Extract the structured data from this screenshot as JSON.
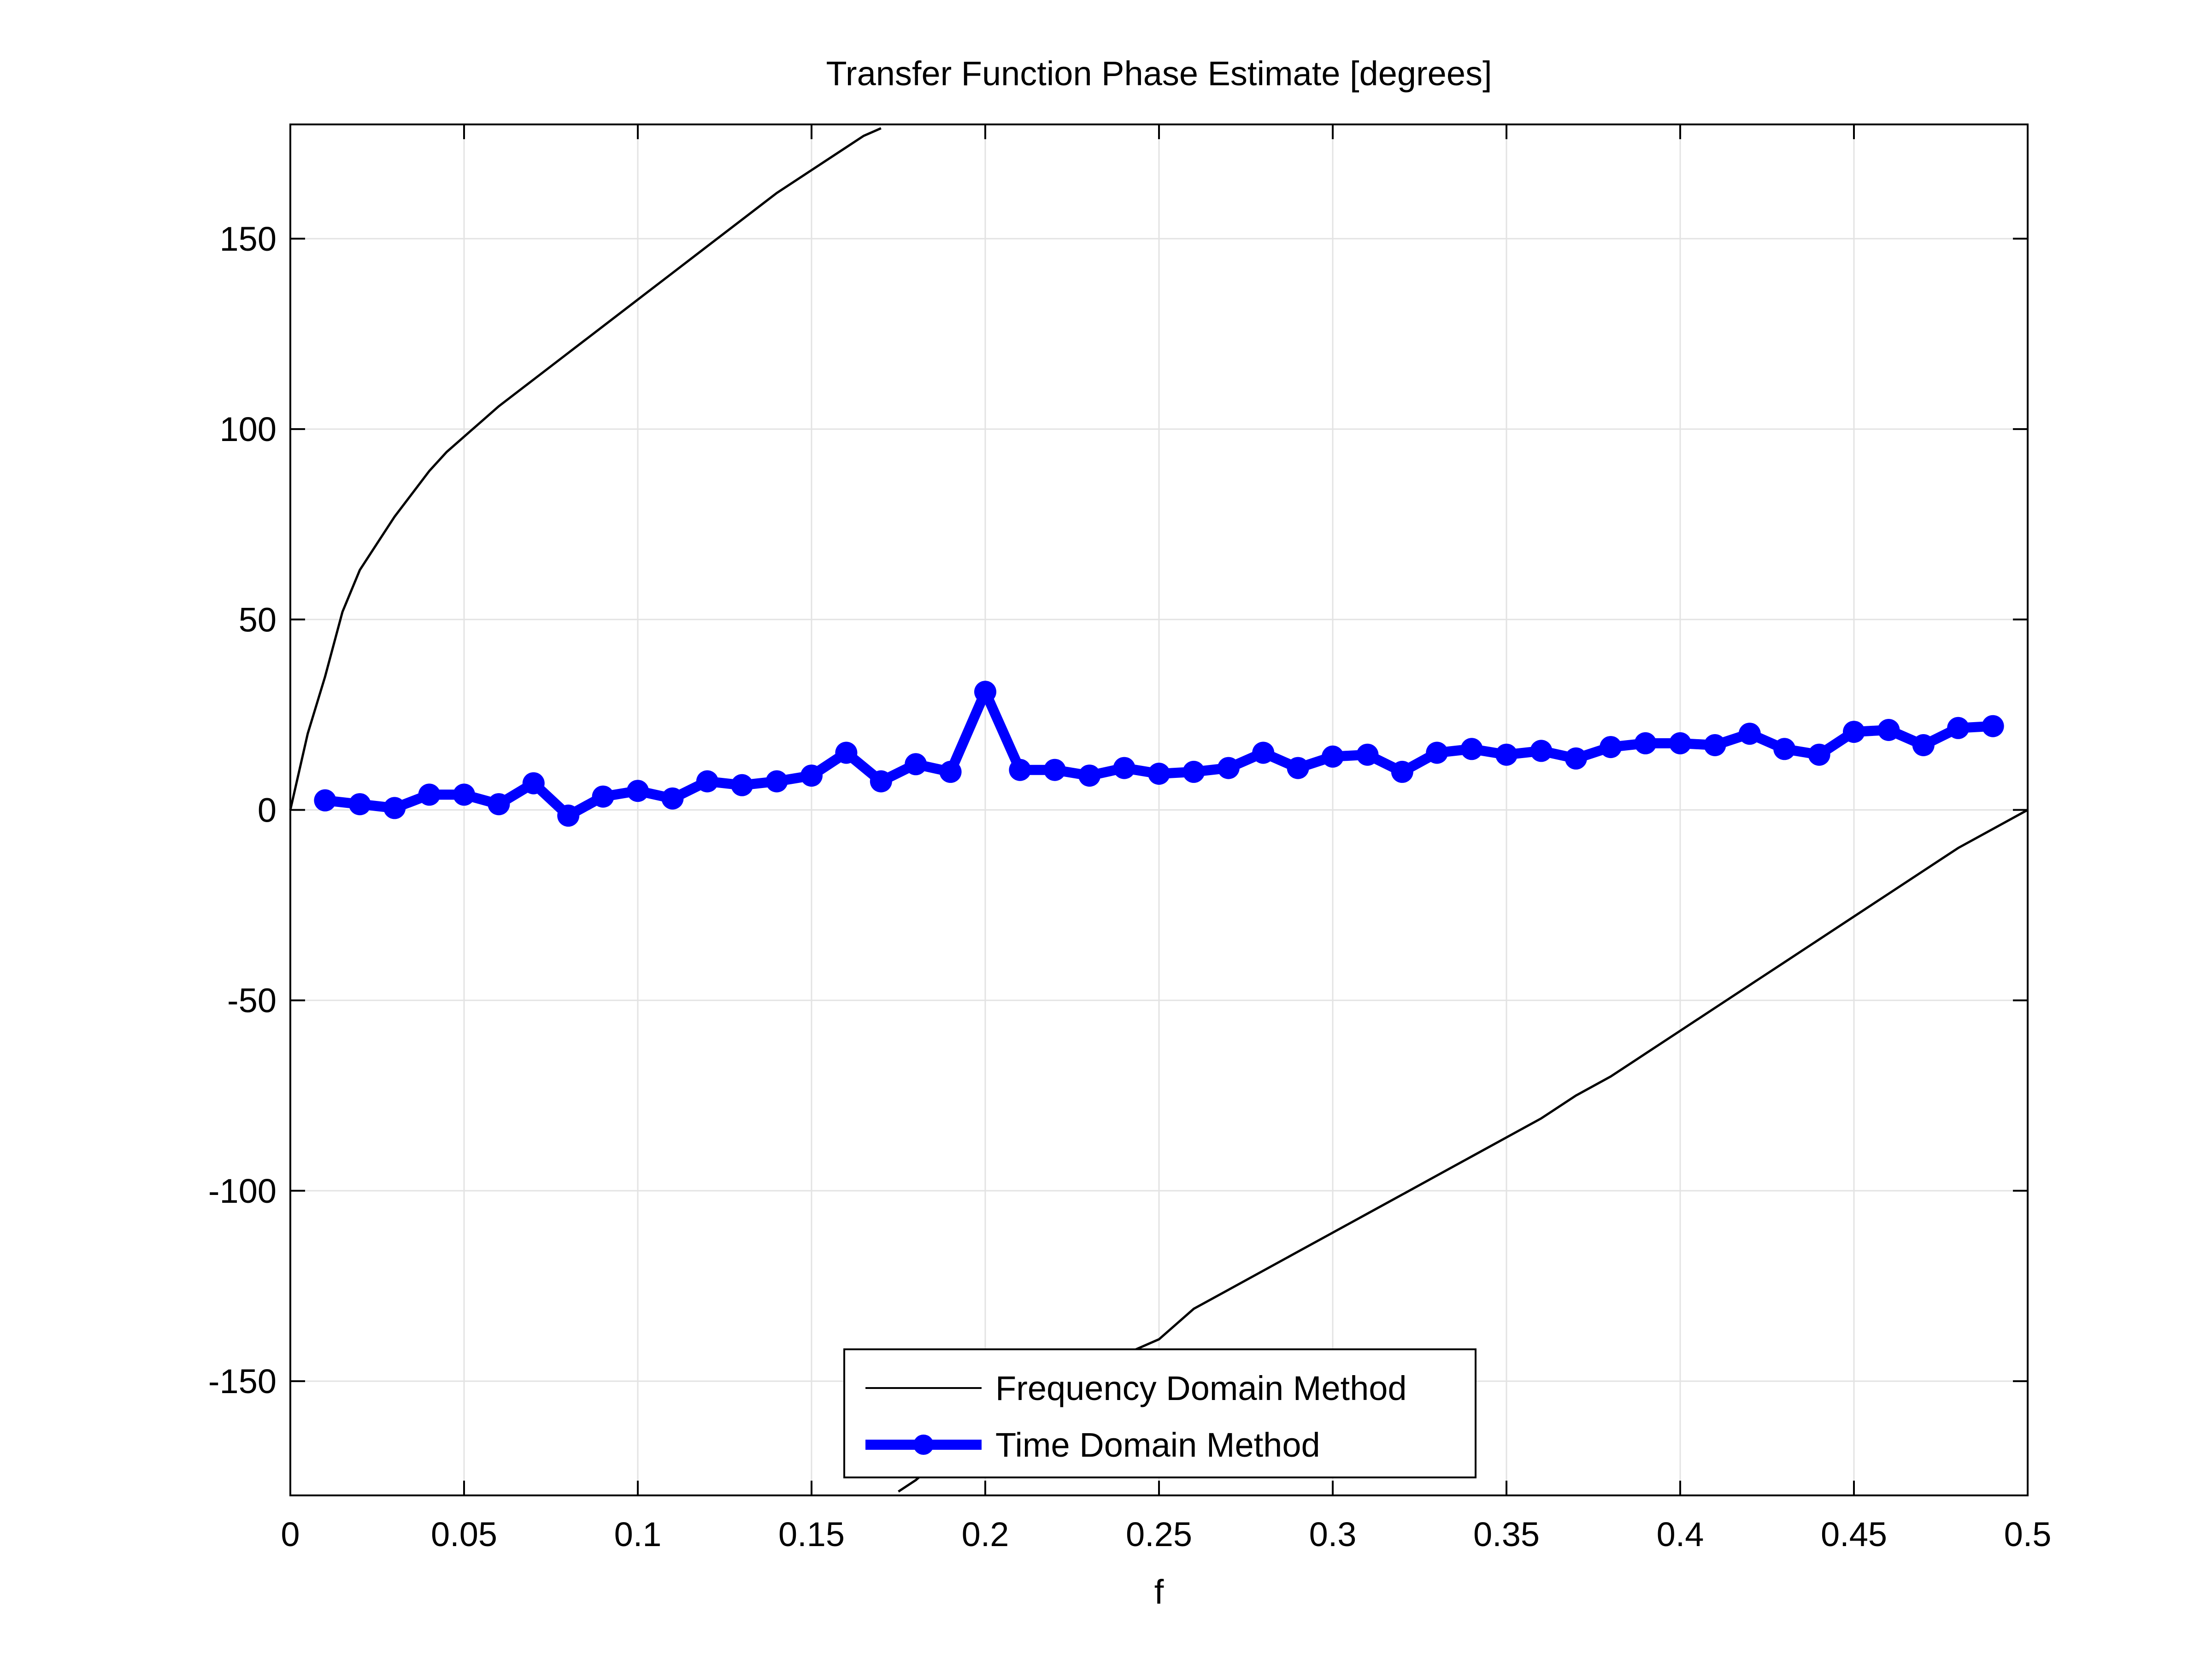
{
  "chart_data": {
    "type": "line",
    "title": "Transfer Function Phase Estimate [degrees]",
    "xlabel": "f",
    "ylabel": "",
    "xlim": [
      0,
      0.5
    ],
    "ylim": [
      -180,
      180
    ],
    "x_ticks": [
      0,
      0.05,
      0.1,
      0.15,
      0.2,
      0.25,
      0.3,
      0.35,
      0.4,
      0.45,
      0.5
    ],
    "x_tick_labels": [
      "0",
      "0.05",
      "0.1",
      "0.15",
      "0.2",
      "0.25",
      "0.3",
      "0.35",
      "0.4",
      "0.45",
      "0.5"
    ],
    "y_ticks": [
      -150,
      -100,
      -50,
      0,
      50,
      100,
      150
    ],
    "y_tick_labels": [
      "-150",
      "-100",
      "-50",
      "0",
      "50",
      "100",
      "150"
    ],
    "grid": true,
    "legend_position": "bottom-center",
    "series": [
      {
        "name": "Frequency Domain Method",
        "color": "#000000",
        "style": "thin-line",
        "x": [
          0,
          0.005,
          0.01,
          0.015,
          0.02,
          0.025,
          0.03,
          0.035,
          0.04,
          0.045,
          0.05,
          0.055,
          0.06,
          0.07,
          0.08,
          0.09,
          0.1,
          0.11,
          0.12,
          0.13,
          0.14,
          0.15,
          0.16,
          0.165,
          0.17,
          0.175,
          0.18,
          0.185,
          0.19,
          0.2,
          0.21,
          0.22,
          0.23,
          0.24,
          0.25,
          0.26,
          0.27,
          0.28,
          0.29,
          0.3,
          0.31,
          0.32,
          0.33,
          0.34,
          0.35,
          0.36,
          0.37,
          0.38,
          0.39,
          0.4,
          0.41,
          0.42,
          0.43,
          0.44,
          0.45,
          0.46,
          0.47,
          0.48,
          0.49,
          0.5
        ],
        "y": [
          0,
          20,
          35,
          52,
          63,
          70,
          77,
          83,
          89,
          94,
          98,
          102,
          106,
          113,
          120,
          127,
          134,
          141,
          148,
          155,
          162,
          168,
          174,
          177,
          179,
          -179,
          -176,
          -172,
          -169,
          -162,
          -156,
          -151,
          -147,
          -143,
          -139,
          -131,
          -126,
          -121,
          -116,
          -111,
          -106,
          -101,
          -96,
          -91,
          -86,
          -81,
          -75,
          -70,
          -64,
          -58,
          -52,
          -46,
          -40,
          -34,
          -28,
          -22,
          -16,
          -10,
          -5,
          0
        ]
      },
      {
        "name": "Time Domain Method",
        "color": "#0000ff",
        "style": "thick-line-circle-markers",
        "x": [
          0.01,
          0.02,
          0.03,
          0.04,
          0.05,
          0.06,
          0.07,
          0.08,
          0.09,
          0.1,
          0.11,
          0.12,
          0.13,
          0.14,
          0.15,
          0.16,
          0.17,
          0.18,
          0.19,
          0.2,
          0.21,
          0.22,
          0.23,
          0.24,
          0.25,
          0.26,
          0.27,
          0.28,
          0.29,
          0.3,
          0.31,
          0.32,
          0.33,
          0.34,
          0.35,
          0.36,
          0.37,
          0.38,
          0.39,
          0.4,
          0.41,
          0.42,
          0.43,
          0.44,
          0.45,
          0.46,
          0.47,
          0.48,
          0.49
        ],
        "y": [
          2.5,
          1.5,
          0.5,
          4,
          4,
          1.5,
          7,
          -1.5,
          3.5,
          5,
          3,
          7.5,
          6.5,
          7.5,
          9,
          15,
          7.5,
          12,
          10,
          31,
          10.5,
          10.5,
          9,
          11,
          9.5,
          10,
          11,
          15,
          11,
          14,
          14.5,
          10,
          15,
          16,
          14.5,
          15.5,
          13.5,
          16.5,
          17.5,
          17.5,
          17,
          20,
          16,
          14.5,
          20.5,
          21,
          17,
          21.5,
          22
        ]
      }
    ]
  }
}
